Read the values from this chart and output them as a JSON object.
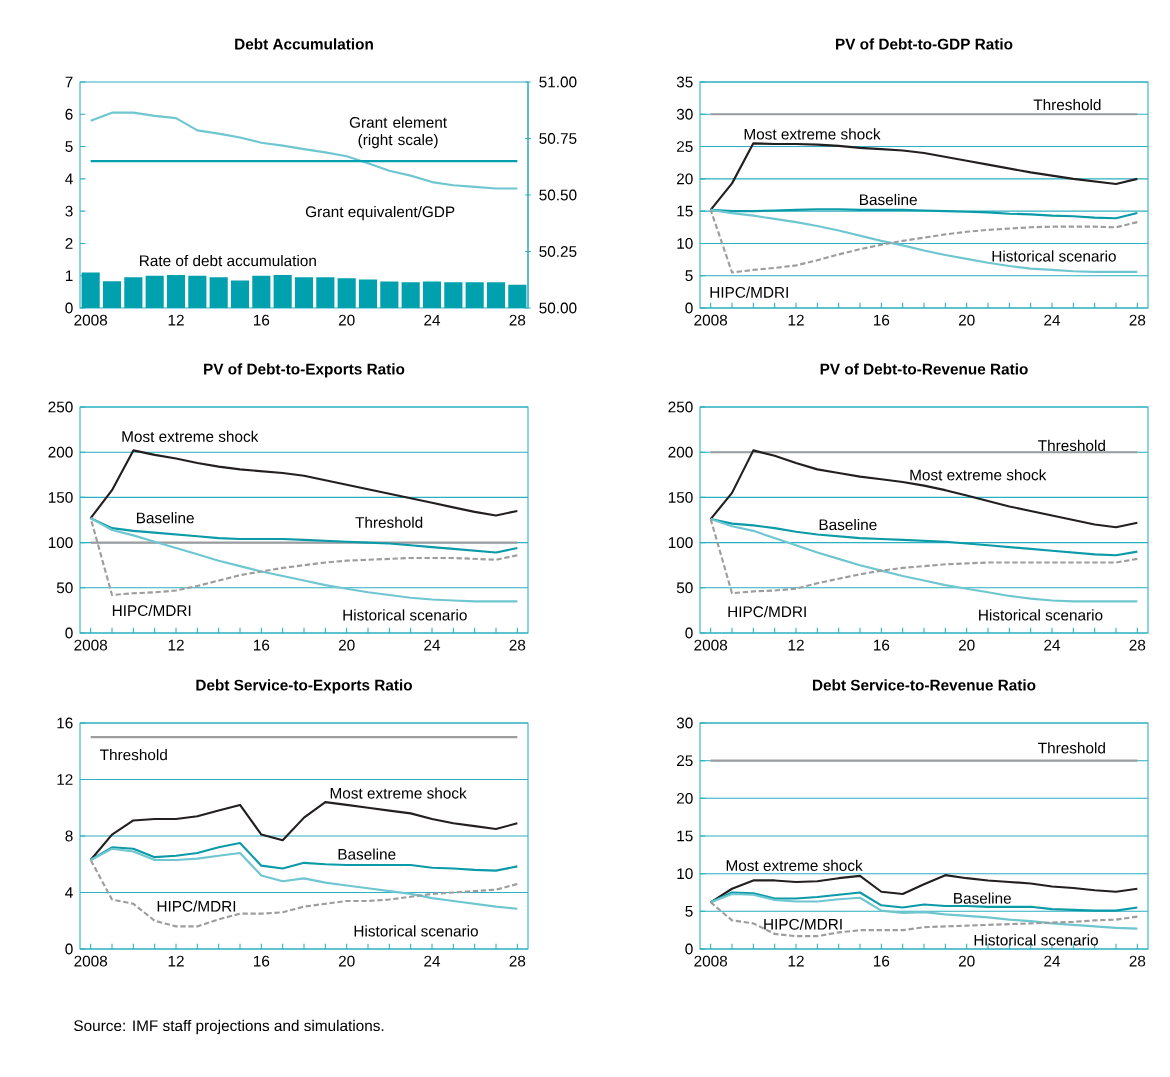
{
  "chart_data": [
    {
      "type": "bar",
      "title": "Debt Accumulation",
      "x": [
        2008,
        2009,
        2010,
        2011,
        2012,
        2013,
        2014,
        2015,
        2016,
        2017,
        2018,
        2019,
        2020,
        2021,
        2022,
        2023,
        2024,
        2025,
        2026,
        2027,
        2028
      ],
      "xlim": [
        2007.5,
        2028.5
      ],
      "xticks": [
        2008,
        {
          "value": 2012,
          "label": "12"
        },
        {
          "value": 2016,
          "label": "16"
        },
        {
          "value": 2020,
          "label": "20"
        },
        {
          "value": 2024,
          "label": "24"
        },
        {
          "value": 2028,
          "label": "28"
        }
      ],
      "ylim": [
        0,
        7
      ],
      "yticks": [
        0,
        1,
        2,
        3,
        4,
        5,
        6,
        7
      ],
      "y2lim": [
        50,
        51
      ],
      "y2ticks": [
        {
          "value": 50,
          "label": "50.00"
        },
        {
          "value": 50.25,
          "label": "50.25"
        },
        {
          "value": 50.5,
          "label": "50.50"
        },
        {
          "value": 50.75,
          "label": "50.75"
        },
        {
          "value": 51,
          "label": "51.00"
        }
      ],
      "series": [
        {
          "name": "Rate of debt accumulation",
          "type": "bar",
          "color": "#00a0ae",
          "values": [
            1.1,
            0.83,
            0.95,
            1.0,
            1.02,
            1.0,
            0.95,
            0.85,
            1.0,
            1.02,
            0.95,
            0.95,
            0.92,
            0.88,
            0.82,
            0.8,
            0.82,
            0.8,
            0.8,
            0.8,
            0.72
          ]
        },
        {
          "name": "Grant equivalent/GDP",
          "type": "line",
          "color": "#6ec6d0",
          "values": [
            5.8,
            6.05,
            6.05,
            5.95,
            5.88,
            5.5,
            5.4,
            5.28,
            5.12,
            5.03,
            4.92,
            4.82,
            4.7,
            4.48,
            4.25,
            4.1,
            3.9,
            3.8,
            3.75,
            3.7,
            3.7
          ]
        },
        {
          "name": "Grant element (right scale)",
          "type": "line",
          "axis": "y2",
          "color": "#00a0ae",
          "values": [
            50.65,
            50.65,
            50.65,
            50.65,
            50.65,
            50.65,
            50.65,
            50.65,
            50.65,
            50.65,
            50.65,
            50.65,
            50.65,
            50.65,
            50.65,
            50.65,
            50.65,
            50.65,
            50.65,
            50.65,
            50.65
          ]
        }
      ]
    },
    {
      "type": "line",
      "title": "PV of Debt-to-GDP Ratio",
      "x": [
        2008,
        2009,
        2010,
        2011,
        2012,
        2013,
        2014,
        2015,
        2016,
        2017,
        2018,
        2019,
        2020,
        2021,
        2022,
        2023,
        2024,
        2025,
        2026,
        2027,
        2028
      ],
      "xlim": [
        2007.5,
        2028.5
      ],
      "xticks": [
        2008,
        {
          "value": 2009,
          "label": null
        },
        {
          "value": 2010,
          "label": null
        },
        {
          "value": 2011,
          "label": null
        },
        {
          "value": 2012,
          "label": "12"
        },
        {
          "value": 2013,
          "label": null
        },
        {
          "value": 2014,
          "label": null
        },
        {
          "value": 2015,
          "label": null
        },
        {
          "value": 2016,
          "label": "16"
        },
        {
          "value": 2017,
          "label": null
        },
        {
          "value": 2018,
          "label": null
        },
        {
          "value": 2019,
          "label": null
        },
        {
          "value": 2020,
          "label": "20"
        },
        {
          "value": 2021,
          "label": null
        },
        {
          "value": 2022,
          "label": null
        },
        {
          "value": 2023,
          "label": null
        },
        {
          "value": 2024,
          "label": "24"
        },
        {
          "value": 2025,
          "label": null
        },
        {
          "value": 2026,
          "label": null
        },
        {
          "value": 2027,
          "label": null
        },
        {
          "value": 2028,
          "label": "28"
        }
      ],
      "ylim": [
        0,
        35
      ],
      "yticks": [
        0,
        5,
        10,
        15,
        20,
        25,
        30,
        35
      ],
      "grid": "y",
      "ref_lines": [
        {
          "axis": "y",
          "value": 30,
          "label": "Threshold",
          "color": "#9d9d9f"
        }
      ],
      "series": [
        {
          "name": "Most extreme shock",
          "color": "#231f20",
          "values": [
            15.2,
            19.3,
            25.5,
            25.4,
            25.4,
            25.3,
            25.1,
            24.8,
            24.6,
            24.4,
            24.0,
            23.4,
            22.8,
            22.2,
            21.6,
            21.0,
            20.5,
            20.0,
            19.6,
            19.2,
            20.0
          ]
        },
        {
          "name": "Baseline",
          "color": "#0a9aa8",
          "values": [
            15.2,
            15.0,
            15.0,
            15.1,
            15.2,
            15.3,
            15.3,
            15.2,
            15.2,
            15.2,
            15.1,
            15.0,
            14.9,
            14.8,
            14.6,
            14.5,
            14.3,
            14.2,
            14.0,
            13.9,
            14.7
          ]
        },
        {
          "name": "Historical scenario",
          "color": "#6ec6d0",
          "values": [
            15.2,
            14.7,
            14.3,
            13.8,
            13.3,
            12.7,
            12.0,
            11.2,
            10.4,
            9.7,
            8.9,
            8.2,
            7.6,
            7.0,
            6.5,
            6.1,
            5.9,
            5.7,
            5.6,
            5.6,
            5.6
          ]
        },
        {
          "name": "HIPC/MDRI",
          "color": "#9d9d9f",
          "line_style": "dashed",
          "values": [
            15.2,
            5.5,
            5.9,
            6.2,
            6.6,
            7.4,
            8.3,
            9.1,
            9.8,
            10.4,
            10.9,
            11.4,
            11.8,
            12.1,
            12.3,
            12.5,
            12.6,
            12.6,
            12.6,
            12.5,
            13.3
          ]
        }
      ]
    },
    {
      "type": "line",
      "title": "PV of Debt-to-Exports Ratio",
      "x": [
        2008,
        2009,
        2010,
        2011,
        2012,
        2013,
        2014,
        2015,
        2016,
        2017,
        2018,
        2019,
        2020,
        2021,
        2022,
        2023,
        2024,
        2025,
        2026,
        2027,
        2028
      ],
      "xlim": [
        2007.5,
        2028.5
      ],
      "xticks": [
        2008,
        {
          "value": 2009,
          "label": null
        },
        {
          "value": 2010,
          "label": null
        },
        {
          "value": 2011,
          "label": null
        },
        {
          "value": 2012,
          "label": "12"
        },
        {
          "value": 2013,
          "label": null
        },
        {
          "value": 2014,
          "label": null
        },
        {
          "value": 2015,
          "label": null
        },
        {
          "value": 2016,
          "label": "16"
        },
        {
          "value": 2017,
          "label": null
        },
        {
          "value": 2018,
          "label": null
        },
        {
          "value": 2019,
          "label": null
        },
        {
          "value": 2020,
          "label": "20"
        },
        {
          "value": 2021,
          "label": null
        },
        {
          "value": 2022,
          "label": null
        },
        {
          "value": 2023,
          "label": null
        },
        {
          "value": 2024,
          "label": "24"
        },
        {
          "value": 2025,
          "label": null
        },
        {
          "value": 2026,
          "label": null
        },
        {
          "value": 2027,
          "label": null
        },
        {
          "value": 2028,
          "label": "28"
        }
      ],
      "ylim": [
        0,
        250
      ],
      "yticks": [
        0,
        50,
        100,
        150,
        200,
        250
      ],
      "grid": "y",
      "ref_lines": [
        {
          "axis": "y",
          "value": 100,
          "label": "Threshold",
          "color": "#9d9d9f"
        }
      ],
      "series": [
        {
          "name": "Most extreme shock",
          "color": "#231f20",
          "values": [
            127,
            158,
            202,
            197,
            193,
            188,
            184,
            181,
            179,
            177,
            174,
            169,
            164,
            159,
            154,
            149,
            144,
            139,
            134,
            130,
            135
          ]
        },
        {
          "name": "Baseline",
          "color": "#0a9aa8",
          "values": [
            127,
            116,
            113,
            111,
            109,
            107,
            105,
            104,
            104,
            104,
            103,
            102,
            101,
            100,
            99,
            97,
            95,
            93,
            91,
            89,
            94
          ]
        },
        {
          "name": "Historical scenario",
          "color": "#6ec6d0",
          "values": [
            127,
            114,
            108,
            101,
            94,
            87,
            80,
            74,
            68,
            63,
            58,
            53,
            49,
            45,
            42,
            39,
            37,
            36,
            35,
            35,
            35
          ]
        },
        {
          "name": "HIPC/MDRI",
          "color": "#9d9d9f",
          "line_style": "dashed",
          "values": [
            127,
            42,
            44,
            45,
            47,
            52,
            58,
            64,
            68,
            72,
            75,
            78,
            80,
            81,
            82,
            83,
            83,
            83,
            82,
            81,
            86
          ]
        }
      ]
    },
    {
      "type": "line",
      "title": "PV of Debt-to-Revenue Ratio",
      "x": [
        2008,
        2009,
        2010,
        2011,
        2012,
        2013,
        2014,
        2015,
        2016,
        2017,
        2018,
        2019,
        2020,
        2021,
        2022,
        2023,
        2024,
        2025,
        2026,
        2027,
        2028
      ],
      "xlim": [
        2007.5,
        2028.5
      ],
      "xticks": [
        2008,
        {
          "value": 2009,
          "label": null
        },
        {
          "value": 2010,
          "label": null
        },
        {
          "value": 2011,
          "label": null
        },
        {
          "value": 2012,
          "label": "12"
        },
        {
          "value": 2013,
          "label": null
        },
        {
          "value": 2014,
          "label": null
        },
        {
          "value": 2015,
          "label": null
        },
        {
          "value": 2016,
          "label": "16"
        },
        {
          "value": 2017,
          "label": null
        },
        {
          "value": 2018,
          "label": null
        },
        {
          "value": 2019,
          "label": null
        },
        {
          "value": 2020,
          "label": "20"
        },
        {
          "value": 2021,
          "label": null
        },
        {
          "value": 2022,
          "label": null
        },
        {
          "value": 2023,
          "label": null
        },
        {
          "value": 2024,
          "label": "24"
        },
        {
          "value": 2025,
          "label": null
        },
        {
          "value": 2026,
          "label": null
        },
        {
          "value": 2027,
          "label": null
        },
        {
          "value": 2028,
          "label": "28"
        }
      ],
      "ylim": [
        0,
        250
      ],
      "yticks": [
        0,
        50,
        100,
        150,
        200,
        250
      ],
      "grid": "y",
      "ref_lines": [
        {
          "axis": "y",
          "value": 200,
          "label": "Threshold",
          "color": "#9d9d9f"
        }
      ],
      "series": [
        {
          "name": "Most extreme shock",
          "color": "#231f20",
          "values": [
            126,
            155,
            202,
            196,
            188,
            181,
            177,
            173,
            170,
            167,
            163,
            158,
            152,
            146,
            140,
            135,
            130,
            125,
            120,
            117,
            122
          ]
        },
        {
          "name": "Baseline",
          "color": "#0a9aa8",
          "values": [
            126,
            121,
            119,
            116,
            112,
            109,
            107,
            105,
            104,
            103,
            102,
            101,
            99,
            97,
            95,
            93,
            91,
            89,
            87,
            86,
            90
          ]
        },
        {
          "name": "Historical scenario",
          "color": "#6ec6d0",
          "values": [
            126,
            118,
            113,
            105,
            97,
            89,
            82,
            75,
            69,
            63,
            58,
            53,
            49,
            45,
            41,
            38,
            36,
            35,
            35,
            35,
            35
          ]
        },
        {
          "name": "HIPC/MDRI",
          "color": "#9d9d9f",
          "line_style": "dashed",
          "values": [
            126,
            44,
            46,
            47,
            49,
            55,
            60,
            65,
            69,
            72,
            74,
            76,
            77,
            78,
            78,
            78,
            78,
            78,
            78,
            78,
            82
          ]
        }
      ]
    },
    {
      "type": "line",
      "title": "Debt Service-to-Exports Ratio",
      "x": [
        2008,
        2009,
        2010,
        2011,
        2012,
        2013,
        2014,
        2015,
        2016,
        2017,
        2018,
        2019,
        2020,
        2021,
        2022,
        2023,
        2024,
        2025,
        2026,
        2027,
        2028
      ],
      "xlim": [
        2007.5,
        2028.5
      ],
      "xticks": [
        2008,
        {
          "value": 2009,
          "label": null
        },
        {
          "value": 2010,
          "label": null
        },
        {
          "value": 2011,
          "label": null
        },
        {
          "value": 2012,
          "label": "12"
        },
        {
          "value": 2013,
          "label": null
        },
        {
          "value": 2014,
          "label": null
        },
        {
          "value": 2015,
          "label": null
        },
        {
          "value": 2016,
          "label": "16"
        },
        {
          "value": 2017,
          "label": null
        },
        {
          "value": 2018,
          "label": null
        },
        {
          "value": 2019,
          "label": null
        },
        {
          "value": 2020,
          "label": "20"
        },
        {
          "value": 2021,
          "label": null
        },
        {
          "value": 2022,
          "label": null
        },
        {
          "value": 2023,
          "label": null
        },
        {
          "value": 2024,
          "label": "24"
        },
        {
          "value": 2025,
          "label": null
        },
        {
          "value": 2026,
          "label": null
        },
        {
          "value": 2027,
          "label": null
        },
        {
          "value": 2028,
          "label": "28"
        }
      ],
      "ylim": [
        0,
        16
      ],
      "yticks": [
        0,
        4,
        8,
        12,
        16
      ],
      "grid": "y",
      "ref_lines": [
        {
          "axis": "y",
          "value": 15,
          "label": "Threshold",
          "color": "#9d9d9f"
        }
      ],
      "annotations": [
        "Source: IMF staff projections and simulations."
      ],
      "series": [
        {
          "name": "Most extreme shock",
          "color": "#231f20",
          "values": [
            6.3,
            8.1,
            9.1,
            9.2,
            9.2,
            9.4,
            9.8,
            10.2,
            8.1,
            7.7,
            9.3,
            10.4,
            10.2,
            10.0,
            9.8,
            9.6,
            9.2,
            8.9,
            8.7,
            8.5,
            8.9
          ]
        },
        {
          "name": "Baseline",
          "color": "#0a9aa8",
          "values": [
            6.3,
            7.2,
            7.1,
            6.5,
            6.6,
            6.8,
            7.2,
            7.5,
            5.9,
            5.7,
            6.1,
            6.0,
            5.95,
            5.95,
            5.95,
            5.95,
            5.75,
            5.7,
            5.6,
            5.55,
            5.85
          ]
        },
        {
          "name": "Historical scenario",
          "color": "#6ec6d0",
          "values": [
            6.3,
            7.1,
            6.9,
            6.3,
            6.3,
            6.4,
            6.6,
            6.8,
            5.2,
            4.8,
            5.0,
            4.7,
            4.5,
            4.3,
            4.1,
            3.9,
            3.6,
            3.4,
            3.2,
            3.0,
            2.85
          ]
        },
        {
          "name": "HIPC/MDRI",
          "color": "#9d9d9f",
          "line_style": "dashed",
          "values": [
            6.3,
            3.5,
            3.2,
            2.0,
            1.6,
            1.6,
            2.1,
            2.5,
            2.5,
            2.6,
            3.0,
            3.2,
            3.4,
            3.4,
            3.5,
            3.7,
            3.9,
            4.0,
            4.1,
            4.2,
            4.6
          ]
        }
      ]
    },
    {
      "type": "line",
      "title": "Debt Service-to-Revenue Ratio",
      "x": [
        2008,
        2009,
        2010,
        2011,
        2012,
        2013,
        2014,
        2015,
        2016,
        2017,
        2018,
        2019,
        2020,
        2021,
        2022,
        2023,
        2024,
        2025,
        2026,
        2027,
        2028
      ],
      "xlim": [
        2007.5,
        2028.5
      ],
      "xticks": [
        2008,
        {
          "value": 2009,
          "label": null
        },
        {
          "value": 2010,
          "label": null
        },
        {
          "value": 2011,
          "label": null
        },
        {
          "value": 2012,
          "label": "12"
        },
        {
          "value": 2013,
          "label": null
        },
        {
          "value": 2014,
          "label": null
        },
        {
          "value": 2015,
          "label": null
        },
        {
          "value": 2016,
          "label": "16"
        },
        {
          "value": 2017,
          "label": null
        },
        {
          "value": 2018,
          "label": null
        },
        {
          "value": 2019,
          "label": null
        },
        {
          "value": 2020,
          "label": "20"
        },
        {
          "value": 2021,
          "label": null
        },
        {
          "value": 2022,
          "label": null
        },
        {
          "value": 2023,
          "label": null
        },
        {
          "value": 2024,
          "label": "24"
        },
        {
          "value": 2025,
          "label": null
        },
        {
          "value": 2026,
          "label": null
        },
        {
          "value": 2027,
          "label": null
        },
        {
          "value": 2028,
          "label": "28"
        }
      ],
      "ylim": [
        0,
        30
      ],
      "yticks": [
        0,
        5,
        10,
        15,
        20,
        25,
        30
      ],
      "grid": "y",
      "ref_lines": [
        {
          "axis": "y",
          "value": 25,
          "label": "Threshold",
          "color": "#9d9d9f"
        }
      ],
      "series": [
        {
          "name": "Most extreme shock",
          "color": "#231f20",
          "values": [
            6.2,
            8.0,
            9.1,
            9.1,
            8.9,
            9.0,
            9.4,
            9.7,
            7.6,
            7.3,
            8.6,
            9.8,
            9.4,
            9.1,
            8.9,
            8.7,
            8.3,
            8.1,
            7.8,
            7.6,
            8.0
          ]
        },
        {
          "name": "Baseline",
          "color": "#0a9aa8",
          "values": [
            6.2,
            7.5,
            7.4,
            6.7,
            6.7,
            6.9,
            7.2,
            7.5,
            5.8,
            5.5,
            5.9,
            5.7,
            5.7,
            5.6,
            5.6,
            5.6,
            5.3,
            5.2,
            5.1,
            5.1,
            5.5
          ]
        },
        {
          "name": "Historical scenario",
          "color": "#6ec6d0",
          "values": [
            6.2,
            7.3,
            7.2,
            6.5,
            6.3,
            6.3,
            6.6,
            6.8,
            5.1,
            4.8,
            4.9,
            4.6,
            4.4,
            4.2,
            3.9,
            3.7,
            3.4,
            3.2,
            3.0,
            2.8,
            2.7
          ]
        },
        {
          "name": "HIPC/MDRI",
          "color": "#9d9d9f",
          "line_style": "dashed",
          "values": [
            6.2,
            3.8,
            3.4,
            2.0,
            1.7,
            1.7,
            2.2,
            2.5,
            2.5,
            2.5,
            2.9,
            3.0,
            3.1,
            3.2,
            3.3,
            3.4,
            3.5,
            3.6,
            3.8,
            3.9,
            4.3
          ]
        }
      ]
    }
  ]
}
